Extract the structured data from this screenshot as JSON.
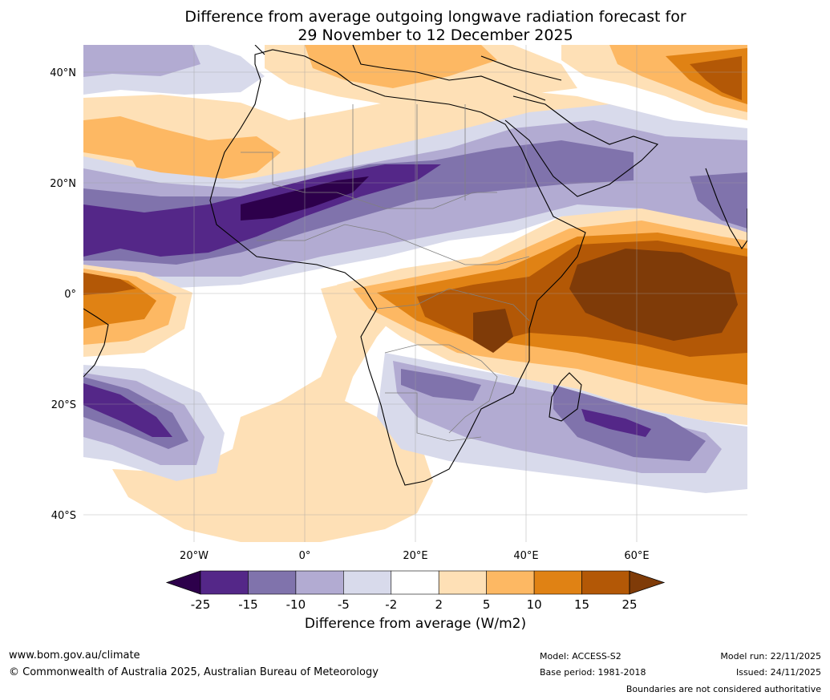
{
  "title": {
    "line1": "Difference from average outgoing longwave radiation forecast for",
    "line2": "29 November to 12 December 2025"
  },
  "map": {
    "lat_labels": [
      "40°N",
      "20°N",
      "0°",
      "20°S",
      "40°S"
    ],
    "lon_labels": [
      "20°W",
      "0°",
      "20°E",
      "40°E",
      "60°E"
    ],
    "extent": {
      "lon_min": -40,
      "lon_max": 80,
      "lat_min": -45,
      "lat_max": 45
    }
  },
  "legend": {
    "ticks": [
      "-25",
      "-15",
      "-10",
      "-5",
      "-2",
      "2",
      "5",
      "10",
      "15",
      "25"
    ],
    "colors": [
      "#2d004b",
      "#542788",
      "#8073ac",
      "#b2abd2",
      "#d8daeb",
      "#ffffff",
      "#fee0b6",
      "#fdb863",
      "#e08214",
      "#b35806",
      "#7f3b08"
    ],
    "title": "Difference from average (W/m2)"
  },
  "footer": {
    "website": "www.bom.gov.au/climate",
    "copyright": "© Commonwealth of Australia 2025, Australian Bureau of Meteorology",
    "model": "Model: ACCESS-S2",
    "base_period": "Base period: 1981-2018",
    "model_run": "Model run: 22/11/2025",
    "issued": "Issued: 24/11/2025",
    "disclaimer": "Boundaries are not considered authoritative"
  }
}
